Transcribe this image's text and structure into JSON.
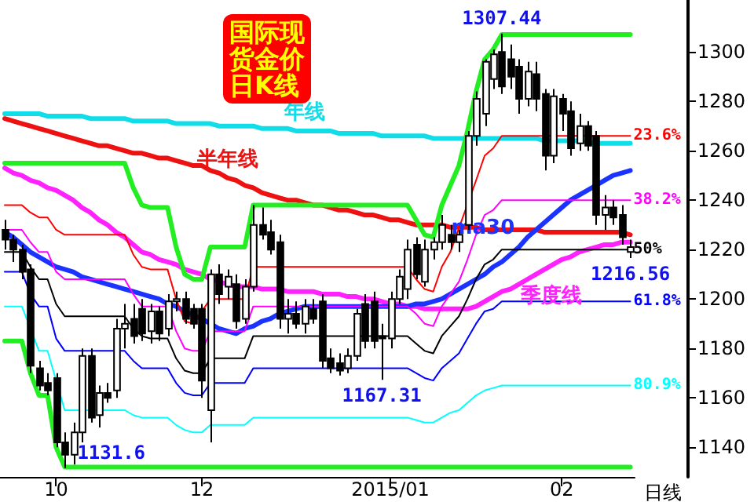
{
  "chart_data": {
    "type": "candlestick",
    "title": "国际现货金价日K线",
    "xlabel": "日线",
    "categories": [
      null,
      null,
      null,
      null,
      null,
      null,
      "10",
      null,
      null,
      null,
      null,
      null,
      null,
      null,
      null,
      null,
      null,
      null,
      null,
      null,
      null,
      null,
      null,
      "12",
      null,
      null,
      null,
      null,
      null,
      null,
      null,
      null,
      null,
      null,
      null,
      null,
      null,
      null,
      null,
      null,
      null,
      null,
      null,
      null,
      null,
      "2015/01",
      null,
      null,
      null,
      null,
      null,
      null,
      null,
      null,
      null,
      null,
      null,
      null,
      null,
      null,
      null,
      null,
      null,
      null,
      null,
      "02",
      null,
      null,
      null,
      null,
      null,
      null,
      null,
      null
    ],
    "ohlc": [
      [
        1228,
        1232,
        1220,
        1224
      ],
      [
        1224,
        1226,
        1215,
        1220
      ],
      [
        1220,
        1222,
        1208,
        1211
      ],
      [
        1212,
        1214,
        1170,
        1173
      ],
      [
        1172,
        1175,
        1163,
        1165
      ],
      [
        1166,
        1170,
        1161,
        1163
      ],
      [
        1168,
        1170,
        1140,
        1142
      ],
      [
        1142,
        1146,
        1131.6,
        1137
      ],
      [
        1137,
        1150,
        1133,
        1146
      ],
      [
        1146,
        1180,
        1142,
        1177
      ],
      [
        1177,
        1180,
        1150,
        1152
      ],
      [
        1153,
        1165,
        1148,
        1162
      ],
      [
        1162,
        1166,
        1158,
        1160
      ],
      [
        1163,
        1192,
        1160,
        1188
      ],
      [
        1188,
        1198,
        1180,
        1190
      ],
      [
        1192,
        1198,
        1182,
        1185
      ],
      [
        1196,
        1200,
        1183,
        1186
      ],
      [
        1187,
        1198,
        1182,
        1195
      ],
      [
        1195,
        1197,
        1183,
        1186
      ],
      [
        1188,
        1202,
        1185,
        1199
      ],
      [
        1199,
        1203,
        1195,
        1200
      ],
      [
        1200,
        1203,
        1190,
        1192
      ],
      [
        1196,
        1198,
        1188,
        1190
      ],
      [
        1196,
        1198,
        1160,
        1167
      ],
      [
        1155,
        1212,
        1142,
        1210
      ],
      [
        1210,
        1214,
        1198,
        1202
      ],
      [
        1205,
        1212,
        1200,
        1209
      ],
      [
        1206,
        1210,
        1188,
        1191
      ],
      [
        1192,
        1208,
        1190,
        1205
      ],
      [
        1205,
        1238,
        1203,
        1230
      ],
      [
        1230,
        1237,
        1224,
        1226
      ],
      [
        1227,
        1232,
        1218,
        1220
      ],
      [
        1223,
        1226,
        1188,
        1192
      ],
      [
        1192,
        1200,
        1186,
        1194
      ],
      [
        1194,
        1199,
        1188,
        1190
      ],
      [
        1190,
        1200,
        1186,
        1197
      ],
      [
        1196,
        1200,
        1190,
        1192
      ],
      [
        1199,
        1202,
        1172,
        1175
      ],
      [
        1176,
        1180,
        1170,
        1172
      ],
      [
        1174,
        1178,
        1169,
        1171
      ],
      [
        1172,
        1180,
        1170,
        1177
      ],
      [
        1177,
        1196,
        1175,
        1194
      ],
      [
        1198,
        1202,
        1180,
        1183
      ],
      [
        1199,
        1203,
        1180,
        1183
      ],
      [
        1185,
        1190,
        1167.31,
        1184
      ],
      [
        1184,
        1203,
        1180,
        1200
      ],
      [
        1200,
        1212,
        1198,
        1209
      ],
      [
        1204,
        1224,
        1200,
        1220
      ],
      [
        1222,
        1225,
        1208,
        1210
      ],
      [
        1207,
        1224,
        1205,
        1220
      ],
      [
        1220,
        1225,
        1216,
        1223
      ],
      [
        1223,
        1234,
        1220,
        1230
      ],
      [
        1226,
        1230,
        1220,
        1223
      ],
      [
        1223,
        1228,
        1219,
        1226
      ],
      [
        1230,
        1268,
        1228,
        1266
      ],
      [
        1266,
        1284,
        1262,
        1281
      ],
      [
        1275,
        1297,
        1270,
        1296
      ],
      [
        1289,
        1301,
        1285,
        1299
      ],
      [
        1300,
        1307.44,
        1283,
        1286
      ],
      [
        1297,
        1303,
        1285,
        1290
      ],
      [
        1294,
        1297,
        1275,
        1281
      ],
      [
        1281,
        1296,
        1278,
        1292
      ],
      [
        1291,
        1296,
        1276,
        1281
      ],
      [
        1283,
        1285,
        1252,
        1258
      ],
      [
        1258,
        1285,
        1255,
        1282
      ],
      [
        1281,
        1283,
        1268,
        1275
      ],
      [
        1276,
        1280,
        1258,
        1261
      ],
      [
        1263,
        1275,
        1260,
        1270
      ],
      [
        1270,
        1272,
        1260,
        1262
      ],
      [
        1266,
        1268,
        1230,
        1234
      ],
      [
        1234,
        1242,
        1228,
        1237
      ],
      [
        1237,
        1240,
        1230,
        1233
      ],
      [
        1234,
        1238,
        1222,
        1225
      ],
      [
        1219,
        1224,
        1216.56,
        1221
      ]
    ],
    "series": [
      {
        "type": "line",
        "name": "年线",
        "color": "#11dde8",
        "values": [
          1275,
          1275,
          1275,
          1275,
          1275,
          1274,
          1274,
          1274,
          1274,
          1274,
          1273,
          1273,
          1273,
          1273,
          1273,
          1272,
          1272,
          1272,
          1272,
          1272,
          1271,
          1271,
          1271,
          1271,
          1271,
          1270,
          1270,
          1270,
          1270,
          1270,
          1269,
          1269,
          1269,
          1269,
          1268,
          1268,
          1268,
          1268,
          1268,
          1267,
          1267,
          1267,
          1267,
          1267,
          1266,
          1266,
          1266,
          1266,
          1266,
          1266,
          1265,
          1265,
          1265,
          1265,
          1265,
          1265,
          1265,
          1265,
          1265,
          1265,
          1265,
          1265,
          1265,
          1264,
          1264,
          1264,
          1264,
          1264,
          null,
          1263,
          1263,
          1263,
          1263,
          1263
        ]
      },
      {
        "type": "line",
        "name": "半年线",
        "color": "#ee1111",
        "values": [
          1273,
          1272,
          1271,
          1270,
          1269,
          1268,
          1267,
          1266,
          1265,
          1264,
          1263,
          1262,
          1262,
          1261,
          1260,
          1259,
          1259,
          1258,
          1257,
          1257,
          1256,
          1255,
          1254,
          1254,
          1252,
          1251,
          1249,
          1248,
          1246,
          1245,
          1243,
          1242,
          1241,
          1240,
          1240,
          1239,
          1238,
          1238,
          1237,
          1236,
          1236,
          1235,
          1234,
          1234,
          1233,
          1232,
          1232,
          1231,
          1230,
          1230,
          1230,
          1230,
          1229,
          1229,
          1229,
          1229,
          1228,
          1228,
          1228,
          1228,
          1228,
          1228,
          1228,
          1227,
          1227,
          1227,
          1227,
          1227,
          1227,
          1227,
          1227,
          1227,
          1227,
          1226
        ]
      },
      {
        "type": "line",
        "name": "季度线",
        "color": "#ff22ff",
        "values": [
          1253,
          1251,
          1250,
          1248,
          1247,
          1245,
          1244,
          1242,
          1240,
          1237,
          1235,
          1232,
          1230,
          1227,
          1225,
          1222,
          1219,
          1218,
          1216,
          1215,
          1214,
          1212,
          1211,
          1210,
          1208,
          1207,
          1206,
          1205,
          1205,
          1205,
          1204,
          1204,
          1204,
          1203,
          1203,
          1203,
          1203,
          1202,
          1202,
          1202,
          1201,
          1201,
          1200,
          1200,
          1199,
          1198,
          1198,
          1197,
          1197,
          1196,
          1196,
          1196,
          1196,
          1196,
          1196,
          1197,
          1199,
          1201,
          1203,
          1204,
          1206,
          1208,
          1210,
          1212,
          1214,
          1216,
          1217,
          1219,
          1220,
          1221,
          1222,
          1222,
          1223,
          1223
        ]
      },
      {
        "type": "line",
        "name": "ma30",
        "color": "#1a33ff",
        "values": [
          1227,
          1225,
          1222,
          1219,
          1217,
          1215,
          1213,
          1212,
          1211,
          1209,
          1208,
          1207,
          1206,
          1205,
          1204,
          1203,
          1202,
          1201,
          1200,
          1198,
          1197,
          1195,
          null,
          1192,
          1190,
          1188,
          1187,
          1186,
          1188,
          1189,
          1191,
          1192,
          1194,
          1195,
          1196,
          1197,
          1197,
          1197,
          1197,
          1197,
          1197,
          1197,
          1197,
          1197,
          1197,
          1197,
          1197,
          1197,
          1198,
          1198,
          1199,
          1200,
          1202,
          1204,
          1206,
          1208,
          1210,
          1213,
          1215,
          1218,
          1221,
          1225,
          1228,
          1231,
          1234,
          1237,
          1240,
          1242,
          1244,
          1246,
          1248,
          1250,
          1251,
          1252
        ]
      },
      {
        "type": "line",
        "color": "#22ee22",
        "values": [
          1255,
          1255,
          1255,
          1255,
          1255,
          1255,
          1255,
          1255,
          1255,
          1255,
          1255,
          1255,
          1255,
          1255,
          1255,
          1245,
          1238,
          1237,
          1237,
          1237,
          1221,
          1210,
          1208,
          1208,
          1221,
          1221,
          1221,
          1221,
          1221,
          1238,
          1238,
          1238,
          1238,
          1238,
          1238,
          1238,
          1238,
          1238,
          1238,
          1238,
          1238,
          1238,
          1238,
          1238,
          1238,
          1238,
          1238,
          1238,
          1232,
          1226,
          1225,
          1238,
          1246,
          1254,
          1268,
          1284,
          1297,
          1301,
          1307,
          1307,
          1307,
          1307,
          1307,
          1307,
          1307,
          1307,
          1307,
          1307,
          1307,
          1307,
          1307,
          1307,
          1307,
          1307
        ]
      },
      {
        "type": "line",
        "color": "#22ee22",
        "values": [
          1183,
          1183,
          1183,
          1170,
          1161,
          1161,
          1140,
          1132,
          1132,
          1132,
          1132,
          1132,
          1132,
          1132,
          1132,
          1132,
          1132,
          1132,
          1132,
          1132,
          1132,
          1132,
          1132,
          1132,
          1132,
          1132,
          1132,
          1132,
          1132,
          1132,
          1132,
          1132,
          1132,
          1132,
          1132,
          1132,
          1132,
          1132,
          1132,
          1132,
          1132,
          1132,
          1132,
          1132,
          1132,
          1132,
          1132,
          1132,
          1132,
          1132,
          1132,
          1132,
          1132,
          1132,
          1132,
          1132,
          1132,
          1132,
          1132,
          1132,
          1132,
          1132,
          1132,
          1132,
          1132,
          1132,
          1132,
          1132,
          1132,
          1132,
          1132,
          1132,
          1132,
          1132
        ]
      },
      {
        "type": "line",
        "name": "23.6%",
        "color": "#ff0000",
        "values": [
          1238,
          1238,
          1238,
          1235,
          1233,
          1233,
          1228,
          1226,
          1226,
          1226,
          1226,
          1226,
          1226,
          1226,
          1226,
          1218,
          1213,
          1212,
          1212,
          1212,
          1200,
          1191,
          1190,
          null,
          1200,
          1200,
          1200,
          1200,
          1200,
          1213,
          1213,
          1213,
          1213,
          1213,
          1213,
          1213,
          1213,
          1213,
          1213,
          1213,
          1213,
          1213,
          1213,
          1213,
          1213,
          1213,
          1213,
          1213,
          1208,
          1204,
          1203,
          1213,
          1219,
          null,
          null,
          1248,
          1258,
          1261,
          1266,
          1266,
          1266,
          1266,
          1266,
          1266,
          1266,
          1266,
          1266,
          1266,
          null,
          1266,
          1266,
          1266,
          1266,
          1266
        ]
      },
      {
        "type": "line",
        "name": "38.2%",
        "color": "#ff00ff",
        "values": [
          1228,
          1228,
          1228,
          1223,
          1219,
          1219,
          1211,
          1208,
          1208,
          1208,
          1208,
          1208,
          1208,
          1208,
          1208,
          1202,
          1197,
          1197,
          1197,
          1197,
          1187,
          1180,
          1179,
          1179,
          1187,
          1187,
          1187,
          1187,
          1187,
          1197,
          1197,
          1197,
          1197,
          1197,
          1197,
          1197,
          1197,
          1197,
          1197,
          1197,
          1197,
          1197,
          1197,
          1197,
          1197,
          1197,
          1197,
          1197,
          1194,
          1190,
          1189,
          1197,
          1202,
          1207,
          1216,
          1226,
          1234,
          1236,
          1240,
          1240,
          1240,
          1240,
          1240,
          1240,
          1240,
          1240,
          1240,
          1240,
          1240,
          1240,
          1240,
          1240,
          1240,
          1240
        ]
      },
      {
        "type": "line",
        "name": "50%",
        "color": "#000000",
        "values": [
          1219,
          1219,
          1219,
          1213,
          1208,
          1208,
          1198,
          1193,
          1193,
          1193,
          1193,
          1193,
          1193,
          1193,
          1193,
          1188,
          1185,
          1184,
          1184,
          1184,
          1176,
          1171,
          1170,
          1170,
          1176,
          1176,
          1176,
          1176,
          1176,
          1185,
          1185,
          1185,
          1185,
          1185,
          1185,
          1185,
          1185,
          1185,
          1185,
          1185,
          1185,
          1185,
          1185,
          1185,
          1185,
          1185,
          1185,
          1185,
          1182,
          1179,
          1178,
          1185,
          1189,
          1193,
          1200,
          1208,
          1214,
          1216,
          1220,
          1220,
          1220,
          1220,
          1220,
          1220,
          1220,
          1220,
          1220,
          1220,
          1220,
          1220,
          1220,
          1220,
          1220,
          1220
        ]
      },
      {
        "type": "line",
        "name": "61.8%",
        "color": "#0000ff",
        "values": [
          1211,
          1211,
          1211,
          1202,
          1197,
          1197,
          1184,
          1179,
          1179,
          1179,
          1179,
          1179,
          1179,
          1179,
          1179,
          1175,
          1172,
          1172,
          1172,
          1172,
          1166,
          1162,
          1161,
          1161,
          1166,
          1166,
          1166,
          1166,
          1166,
          1172,
          1172,
          1172,
          1172,
          1172,
          1172,
          1172,
          1172,
          1172,
          1172,
          1172,
          1172,
          1172,
          1172,
          1172,
          1172,
          1172,
          1172,
          1172,
          1170,
          1168,
          1167,
          1172,
          1175,
          1178,
          1184,
          1190,
          1195,
          1196,
          1199,
          1199,
          1199,
          1199,
          1199,
          1199,
          1199,
          1199,
          1199,
          1199,
          1199,
          1199,
          1199,
          1199,
          1199,
          1199
        ]
      },
      {
        "type": "line",
        "name": "80.9%",
        "color": "#00ffff",
        "values": [
          1197,
          1197,
          1197,
          null,
          1179,
          1179,
          null,
          1155,
          1155,
          1155,
          1155,
          1155,
          1155,
          1155,
          1155,
          1153,
          1152,
          1152,
          1152,
          1152,
          1149,
          1147,
          1146,
          1146,
          1149,
          1149,
          1149,
          1149,
          1149,
          1152,
          1152,
          1152,
          1152,
          1152,
          1152,
          1152,
          1152,
          1152,
          1152,
          1152,
          1152,
          1152,
          1152,
          1152,
          1152,
          1152,
          1152,
          1152,
          1151,
          1150,
          1150,
          1152,
          1154,
          1155,
          1158,
          1161,
          1163,
          1164,
          1165,
          1165,
          1165,
          1165,
          1165,
          1165,
          1165,
          1165,
          1165,
          1165,
          1165,
          1165,
          1165,
          1165,
          1165,
          1165
        ]
      }
    ],
    "annotations": [
      {
        "text": "1307.44",
        "y": 1307.44
      },
      {
        "text": "1131.6",
        "y": 1131.6
      },
      {
        "text": "1167.31",
        "y": 1167.31
      },
      {
        "text": "1216.56",
        "y": 1216.56
      }
    ],
    "ylim": [
      1128,
      1321
    ],
    "yticks": [
      1140,
      1160,
      1180,
      1200,
      1220,
      1240,
      1260,
      1280,
      1300
    ]
  }
}
